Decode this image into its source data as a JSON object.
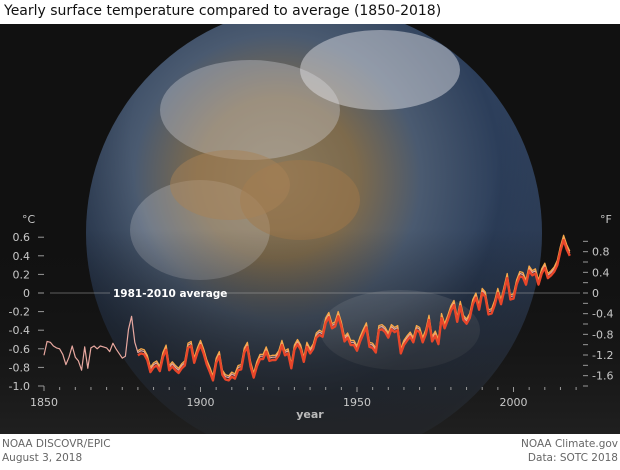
{
  "title": "Yearly surface temperature compared to average (1850-2018)",
  "footer": {
    "left_1": "NOAA DISCOVR/EPIC",
    "left_2": "August 3, 2018",
    "right_1": "NOAA Climate.gov",
    "right_2": "Data: SOTC 2018"
  },
  "colors": {
    "background": "#111111",
    "axis_text": "#cccccc",
    "series_pink": "#e8a8a0",
    "series_orange": "#f7a84a",
    "series_red": "#e8462a"
  },
  "chart_data": {
    "type": "line",
    "title": "Yearly surface temperature compared to average (1850-2018)",
    "xlabel": "year",
    "ylabel_left": "°C",
    "ylabel_right": "°F",
    "xlim": [
      1850,
      2018
    ],
    "ylim": [
      -1.0,
      0.6
    ],
    "x_ticks": [
      1850,
      1900,
      1950,
      2000
    ],
    "y_ticks_c": [
      "0.6",
      "0.4",
      "0.2",
      "0",
      "-0.2",
      "-0.4",
      "-0.6",
      "-0.8",
      "-1.0"
    ],
    "y_ticks_f": [
      "0.8",
      "0.4",
      "0",
      "-0.4",
      "-0.8",
      "-1.2",
      "-1.6"
    ],
    "reference_line": {
      "value": 0,
      "label": "1981-2010 average"
    },
    "grid": false,
    "series": [
      {
        "color": "#e8a8a0",
        "start_year": 1850,
        "values": [
          -0.67,
          -0.52,
          -0.53,
          -0.57,
          -0.59,
          -0.6,
          -0.66,
          -0.77,
          -0.69,
          -0.57,
          -0.69,
          -0.73,
          -0.83,
          -0.58,
          -0.81,
          -0.59,
          -0.57,
          -0.6,
          -0.57,
          -0.58,
          -0.59,
          -0.63,
          -0.54,
          -0.6,
          -0.65,
          -0.7,
          -0.68,
          -0.39,
          -0.25,
          -0.53,
          -0.64,
          -0.62,
          -0.63,
          -0.69,
          -0.82,
          -0.77,
          -0.75,
          -0.81,
          -0.66,
          -0.58,
          -0.8,
          -0.76,
          -0.8,
          -0.83,
          -0.78,
          -0.75,
          -0.56,
          -0.54,
          -0.72,
          -0.61,
          -0.53,
          -0.62,
          -0.74,
          -0.82,
          -0.91,
          -0.72,
          -0.65,
          -0.85,
          -0.9,
          -0.91,
          -0.87,
          -0.89,
          -0.8,
          -0.79,
          -0.61,
          -0.55,
          -0.76,
          -0.88,
          -0.76,
          -0.68,
          -0.68,
          -0.6,
          -0.7,
          -0.69,
          -0.69,
          -0.64,
          -0.53,
          -0.64,
          -0.62,
          -0.78,
          -0.58,
          -0.52,
          -0.58,
          -0.71,
          -0.55,
          -0.62,
          -0.57,
          -0.45,
          -0.42,
          -0.44,
          -0.29,
          -0.23,
          -0.35,
          -0.33,
          -0.22,
          -0.33,
          -0.49,
          -0.45,
          -0.53,
          -0.53,
          -0.59,
          -0.49,
          -0.41,
          -0.34,
          -0.55,
          -0.56,
          -0.61,
          -0.37,
          -0.36,
          -0.39,
          -0.45,
          -0.36,
          -0.39,
          -0.37,
          -0.62,
          -0.53,
          -0.48,
          -0.44,
          -0.5,
          -0.37,
          -0.39,
          -0.5,
          -0.41,
          -0.26,
          -0.49,
          -0.43,
          -0.52,
          -0.24,
          -0.35,
          -0.26,
          -0.16,
          -0.1,
          -0.28,
          -0.11,
          -0.26,
          -0.3,
          -0.24,
          -0.09,
          -0.02,
          -0.15,
          0.03,
          -0.01,
          -0.2,
          -0.19,
          -0.1,
          0.03,
          -0.09,
          0.05,
          0.19,
          -0.04,
          -0.03,
          0.12,
          0.21,
          0.2,
          0.12,
          0.27,
          0.22,
          0.24,
          0.12,
          0.24,
          0.3,
          0.19,
          0.22,
          0.26,
          0.33,
          0.48,
          0.6,
          0.5,
          0.43
        ]
      },
      {
        "color": "#f7a84a",
        "start_year": 1880,
        "values": [
          -0.62,
          -0.6,
          -0.61,
          -0.67,
          -0.8,
          -0.75,
          -0.73,
          -0.79,
          -0.64,
          -0.56,
          -0.78,
          -0.74,
          -0.78,
          -0.81,
          -0.76,
          -0.73,
          -0.54,
          -0.52,
          -0.7,
          -0.59,
          -0.51,
          -0.6,
          -0.72,
          -0.8,
          -0.89,
          -0.7,
          -0.63,
          -0.83,
          -0.88,
          -0.89,
          -0.85,
          -0.87,
          -0.78,
          -0.77,
          -0.59,
          -0.53,
          -0.74,
          -0.86,
          -0.74,
          -0.66,
          -0.66,
          -0.58,
          -0.68,
          -0.67,
          -0.67,
          -0.62,
          -0.51,
          -0.62,
          -0.6,
          -0.76,
          -0.56,
          -0.5,
          -0.56,
          -0.69,
          -0.53,
          -0.6,
          -0.55,
          -0.43,
          -0.4,
          -0.42,
          -0.27,
          -0.21,
          -0.33,
          -0.31,
          -0.2,
          -0.31,
          -0.47,
          -0.43,
          -0.51,
          -0.51,
          -0.57,
          -0.47,
          -0.39,
          -0.32,
          -0.53,
          -0.54,
          -0.59,
          -0.35,
          -0.34,
          -0.37,
          -0.43,
          -0.34,
          -0.37,
          -0.35,
          -0.6,
          -0.51,
          -0.46,
          -0.42,
          -0.48,
          -0.35,
          -0.37,
          -0.48,
          -0.39,
          -0.24,
          -0.47,
          -0.41,
          -0.5,
          -0.22,
          -0.33,
          -0.24,
          -0.14,
          -0.08,
          -0.26,
          -0.09,
          -0.24,
          -0.28,
          -0.22,
          -0.07,
          0.0,
          -0.13,
          0.05,
          0.01,
          -0.18,
          -0.17,
          -0.08,
          0.05,
          -0.07,
          0.07,
          0.21,
          -0.02,
          -0.01,
          0.14,
          0.23,
          0.22,
          0.14,
          0.29,
          0.24,
          0.26,
          0.14,
          0.26,
          0.32,
          0.21,
          0.24,
          0.28,
          0.35,
          0.5,
          0.62,
          0.52,
          0.45
        ]
      },
      {
        "color": "#e8462a",
        "start_year": 1880,
        "values": [
          -0.67,
          -0.65,
          -0.66,
          -0.72,
          -0.85,
          -0.8,
          -0.78,
          -0.84,
          -0.69,
          -0.61,
          -0.83,
          -0.79,
          -0.83,
          -0.86,
          -0.81,
          -0.78,
          -0.59,
          -0.57,
          -0.75,
          -0.64,
          -0.56,
          -0.65,
          -0.77,
          -0.85,
          -0.94,
          -0.75,
          -0.68,
          -0.88,
          -0.93,
          -0.94,
          -0.9,
          -0.92,
          -0.83,
          -0.82,
          -0.64,
          -0.58,
          -0.79,
          -0.91,
          -0.79,
          -0.71,
          -0.71,
          -0.63,
          -0.73,
          -0.72,
          -0.72,
          -0.67,
          -0.56,
          -0.67,
          -0.65,
          -0.81,
          -0.61,
          -0.55,
          -0.61,
          -0.74,
          -0.58,
          -0.65,
          -0.6,
          -0.48,
          -0.45,
          -0.47,
          -0.32,
          -0.26,
          -0.38,
          -0.36,
          -0.25,
          -0.36,
          -0.52,
          -0.48,
          -0.56,
          -0.56,
          -0.62,
          -0.52,
          -0.44,
          -0.37,
          -0.58,
          -0.59,
          -0.64,
          -0.4,
          -0.39,
          -0.42,
          -0.48,
          -0.39,
          -0.42,
          -0.4,
          -0.65,
          -0.56,
          -0.51,
          -0.47,
          -0.53,
          -0.4,
          -0.42,
          -0.53,
          -0.44,
          -0.29,
          -0.52,
          -0.46,
          -0.55,
          -0.27,
          -0.38,
          -0.29,
          -0.19,
          -0.13,
          -0.31,
          -0.14,
          -0.29,
          -0.33,
          -0.27,
          -0.12,
          -0.05,
          -0.18,
          0.0,
          -0.04,
          -0.23,
          -0.22,
          -0.13,
          0.0,
          -0.12,
          0.02,
          0.16,
          -0.07,
          -0.06,
          0.09,
          0.18,
          0.17,
          0.09,
          0.24,
          0.19,
          0.21,
          0.09,
          0.21,
          0.27,
          0.16,
          0.19,
          0.23,
          0.3,
          0.45,
          0.57,
          0.47,
          0.4
        ]
      }
    ]
  }
}
